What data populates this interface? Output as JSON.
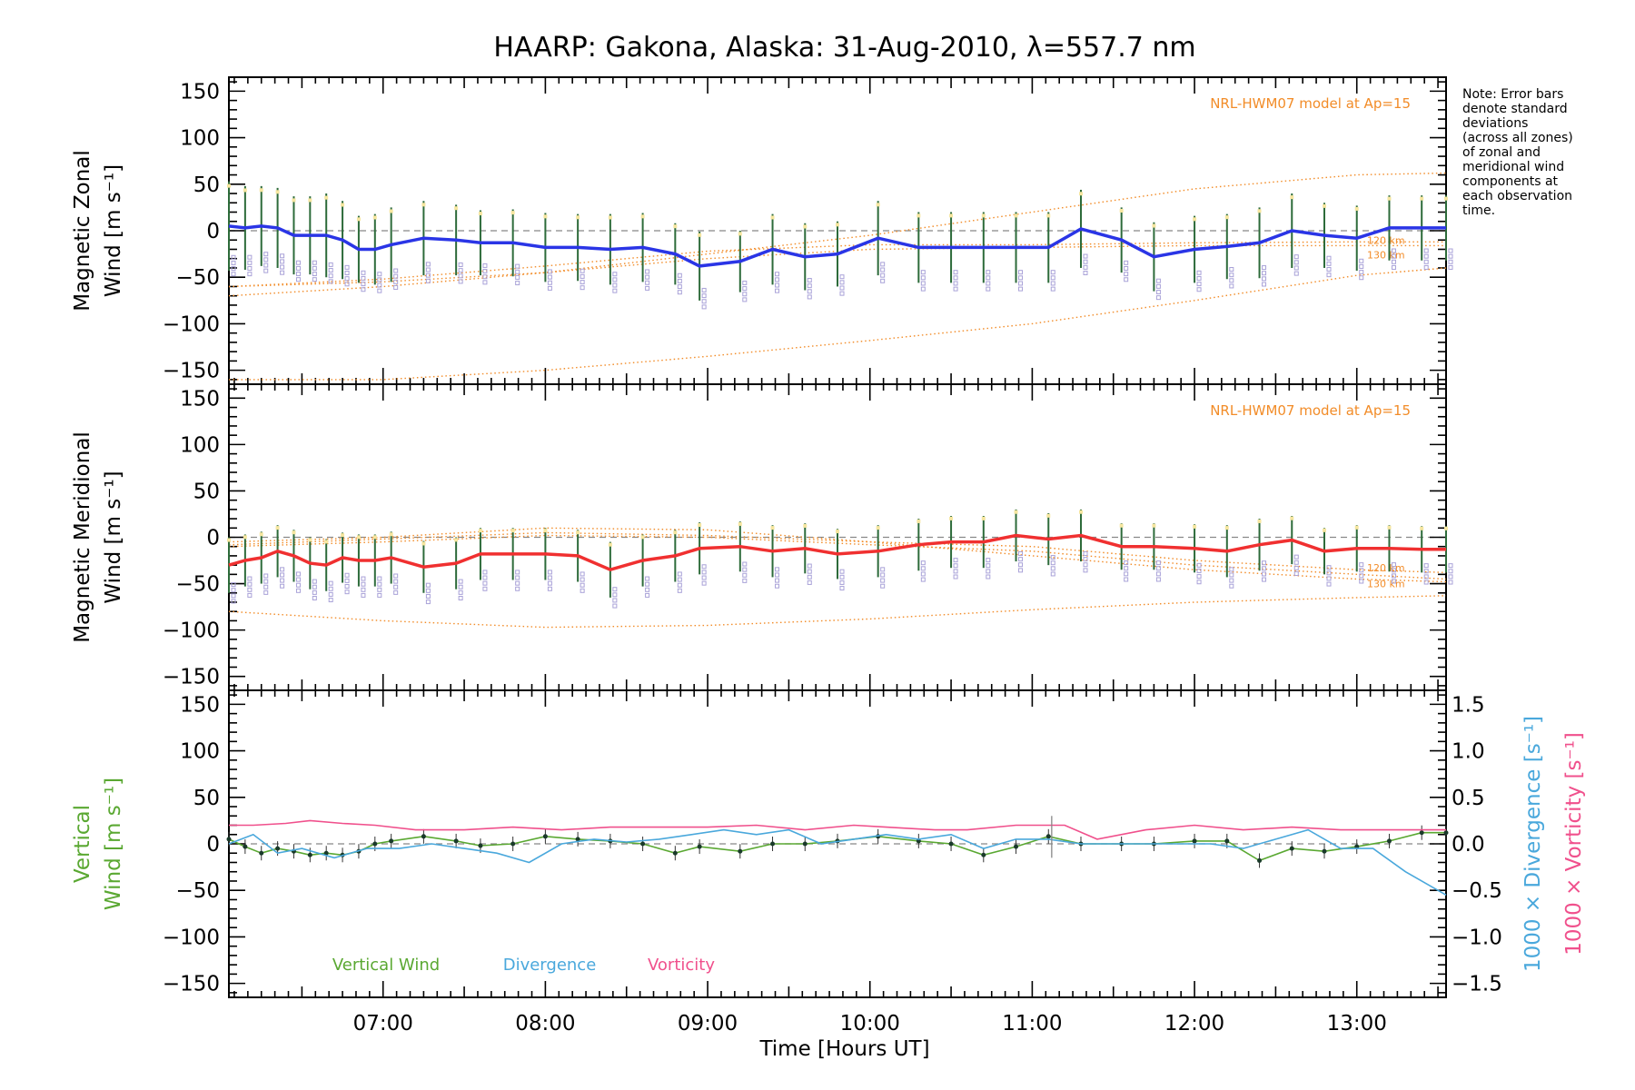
{
  "chart_data": {
    "title": "HAARP: Gakona,  Alaska: 31-Aug-2010, λ=557.7 nm",
    "xlabel": "Time [Hours UT]",
    "x_tick_labels": [
      "07:00",
      "08:00",
      "09:00",
      "10:00",
      "11:00",
      "12:00",
      "13:00"
    ],
    "x_tick_values": [
      7,
      8,
      9,
      10,
      11,
      12,
      13
    ],
    "xlim": [
      6.05,
      13.55
    ],
    "note": [
      "Note: Error bars",
      "denote standard",
      "deviations",
      "(across all zones)",
      "of zonal and",
      "meridional wind",
      "components at",
      "each observation",
      "time."
    ],
    "model_label": "NRL-HWM07 model at Ap=15",
    "km_labels": [
      "120 km",
      "130 km"
    ],
    "colors": {
      "zonal": "#2a35e6",
      "meridional": "#f03030",
      "model": "#f28c28",
      "vertical": "#5aa832",
      "divergence": "#4aa8dc",
      "vorticity": "#f0508c",
      "errorbar": "#2d6b3a",
      "zone_points": "#a9a2d8"
    },
    "panels": [
      {
        "type": "line",
        "name": "zonal",
        "ylabel": [
          "Magnetic Zonal",
          "Wind [m s⁻¹]"
        ],
        "ylim": [
          -165,
          165
        ],
        "y_tick_labels": [
          "150",
          "100",
          "50",
          "0",
          "−50",
          "−100",
          "−150"
        ],
        "y_tick_values": [
          150,
          100,
          50,
          0,
          -50,
          -100,
          -150
        ],
        "series": [
          {
            "x": [
              6.05,
              6.15,
              6.25,
              6.35,
              6.45,
              6.55,
              6.65,
              6.75,
              6.85,
              6.95,
              7.05,
              7.25,
              7.45,
              7.6,
              7.8,
              8.0,
              8.2,
              8.4,
              8.6,
              8.8,
              8.95,
              9.2,
              9.4,
              9.6,
              9.8,
              10.05,
              10.3,
              10.5,
              10.7,
              10.9,
              11.1,
              11.3,
              11.55,
              11.75,
              12.0,
              12.2,
              12.4,
              12.6,
              12.8,
              13.0,
              13.2,
              13.4,
              13.55
            ],
            "values": [
              5,
              3,
              5,
              3,
              -5,
              -5,
              -5,
              -10,
              -20,
              -20,
              -15,
              -8,
              -10,
              -13,
              -13,
              -18,
              -18,
              -20,
              -18,
              -25,
              -38,
              -33,
              -20,
              -28,
              -25,
              -8,
              -18,
              -18,
              -18,
              -18,
              -18,
              2,
              -10,
              -28,
              -20,
              -17,
              -13,
              0,
              -5,
              -8,
              3,
              3,
              3
            ],
            "errorbar_sd": [
              48,
              45,
              43,
              43,
              42,
              42,
              45,
              42,
              36,
              38,
              40,
              40,
              38,
              35,
              36,
              37,
              36,
              38,
              37,
              33,
              37,
              33,
              38,
              36,
              35,
              40,
              38,
              38,
              38,
              38,
              38,
              42,
              35,
              37,
              36,
              35,
              38,
              40,
              35,
              35,
              35,
              35,
              35
            ]
          }
        ],
        "model_curves": {
          "upper": {
            "x": [
              6.05,
              7,
              8,
              9,
              10,
              11,
              12,
              13,
              13.55
            ],
            "values": [
              -70,
              -60,
              -45,
              -25,
              -5,
              20,
              45,
              60,
              62
            ]
          },
          "lower_120": {
            "x": [
              6.05,
              7,
              8,
              9,
              10,
              11,
              12,
              13,
              13.55
            ],
            "values": [
              -160,
              -160,
              -150,
              -135,
              -118,
              -100,
              -75,
              -48,
              -40
            ]
          },
          "mid_120": {
            "x": [
              6.05,
              7,
              8,
              9,
              10,
              11,
              12,
              13,
              13.55
            ],
            "values": [
              -60,
              -52,
              -38,
              -22,
              -15,
              -15,
              -13,
              -12,
              -12
            ]
          },
          "mid_130": {
            "x": [
              6.05,
              7,
              8,
              9,
              10,
              11,
              12,
              13,
              13.55
            ],
            "values": [
              -60,
              -55,
              -45,
              -30,
              -20,
              -18,
              -16,
              -16,
              -16
            ]
          }
        }
      },
      {
        "type": "line",
        "name": "meridional",
        "ylabel": [
          "Magnetic Meridional",
          "Wind [m s⁻¹]"
        ],
        "ylim": [
          -165,
          165
        ],
        "y_tick_labels": [
          "150",
          "100",
          "50",
          "0",
          "−50",
          "−100",
          "−150"
        ],
        "y_tick_values": [
          150,
          100,
          50,
          0,
          -50,
          -100,
          -150
        ],
        "series": [
          {
            "x": [
              6.05,
              6.15,
              6.25,
              6.35,
              6.45,
              6.55,
              6.65,
              6.75,
              6.85,
              6.95,
              7.05,
              7.25,
              7.45,
              7.6,
              7.8,
              8.0,
              8.2,
              8.4,
              8.6,
              8.8,
              8.95,
              9.2,
              9.4,
              9.6,
              9.8,
              10.05,
              10.3,
              10.5,
              10.7,
              10.9,
              11.1,
              11.3,
              11.55,
              11.75,
              12.0,
              12.2,
              12.4,
              12.6,
              12.8,
              13.0,
              13.2,
              13.4,
              13.55
            ],
            "values": [
              -30,
              -25,
              -22,
              -15,
              -20,
              -28,
              -30,
              -22,
              -25,
              -25,
              -22,
              -32,
              -28,
              -18,
              -18,
              -18,
              -20,
              -35,
              -25,
              -20,
              -12,
              -10,
              -15,
              -12,
              -18,
              -15,
              -8,
              -5,
              -5,
              2,
              -2,
              2,
              -10,
              -10,
              -12,
              -15,
              -8,
              -3,
              -15,
              -12,
              -12,
              -13,
              -13
            ],
            "errorbar_sd": [
              30,
              28,
              28,
              28,
              28,
              28,
              28,
              27,
              28,
              28,
              28,
              28,
              28,
              28,
              28,
              28,
              28,
              30,
              28,
              28,
              28,
              27,
              28,
              27,
              27,
              28,
              28,
              28,
              28,
              28,
              28,
              28,
              25,
              25,
              26,
              28,
              28,
              26,
              25,
              25,
              25,
              25,
              25
            ]
          }
        ],
        "model_curves": {
          "upper": {
            "x": [
              6.05,
              7,
              8,
              9,
              10,
              11,
              12,
              13,
              13.55
            ],
            "values": [
              -5,
              0,
              10,
              8,
              -5,
              -20,
              -35,
              -45,
              -48
            ]
          },
          "lower": {
            "x": [
              6.05,
              7,
              8,
              9,
              10,
              11,
              12,
              13,
              13.55
            ],
            "values": [
              -80,
              -90,
              -97,
              -95,
              -88,
              -78,
              -70,
              -65,
              -63
            ]
          },
          "mid_120": {
            "x": [
              6.05,
              7,
              8,
              9,
              10,
              11,
              12,
              13,
              13.55
            ],
            "values": [
              -8,
              -2,
              5,
              2,
              -5,
              -10,
              -25,
              -35,
              -38
            ]
          },
          "mid_130": {
            "x": [
              6.05,
              7,
              8,
              9,
              10,
              11,
              12,
              13,
              13.55
            ],
            "values": [
              -10,
              -5,
              2,
              0,
              -8,
              -15,
              -30,
              -40,
              -45
            ]
          }
        }
      },
      {
        "type": "line",
        "name": "vertical",
        "ylabel_left": [
          "Vertical",
          "Wind [m s⁻¹]"
        ],
        "ylabel_right_1": "1000 × Divergence [s⁻¹]",
        "ylabel_right_2": "1000 × Vorticity [s⁻¹]",
        "ylim": [
          -165,
          165
        ],
        "y_tick_labels": [
          "150",
          "100",
          "50",
          "0",
          "−50",
          "−100",
          "−150"
        ],
        "y_tick_values": [
          150,
          100,
          50,
          0,
          -50,
          -100,
          -150
        ],
        "y2lim": [
          -1.65,
          1.65
        ],
        "y2_tick_labels": [
          "1.5",
          "1.0",
          "0.5",
          "0.0",
          "−0.5",
          "−1.0",
          "−1.5"
        ],
        "y2_tick_values": [
          1.5,
          1.0,
          0.5,
          0.0,
          -0.5,
          -1.0,
          -1.5
        ],
        "legend": [
          "Vertical Wind",
          "Divergence",
          "Vorticity"
        ],
        "series": [
          {
            "name": "Vertical Wind",
            "x": [
              6.05,
              6.15,
              6.25,
              6.35,
              6.45,
              6.55,
              6.65,
              6.75,
              6.85,
              6.95,
              7.05,
              7.25,
              7.45,
              7.6,
              7.8,
              8.0,
              8.2,
              8.4,
              8.6,
              8.8,
              8.95,
              9.2,
              9.4,
              9.6,
              9.8,
              10.05,
              10.3,
              10.5,
              10.7,
              10.9,
              11.1,
              11.3,
              11.55,
              11.75,
              12.0,
              12.2,
              12.4,
              12.6,
              12.8,
              13.0,
              13.2,
              13.4,
              13.55
            ],
            "values": [
              5,
              -3,
              -10,
              -5,
              -8,
              -12,
              -10,
              -12,
              -8,
              0,
              3,
              8,
              3,
              -2,
              0,
              8,
              5,
              3,
              0,
              -10,
              -3,
              -8,
              0,
              0,
              3,
              8,
              3,
              0,
              -12,
              -3,
              8,
              0,
              0,
              0,
              3,
              3,
              -18,
              -5,
              -8,
              -3,
              3,
              12,
              12
            ]
          },
          {
            "name": "Divergence",
            "x": [
              6.05,
              6.2,
              6.35,
              6.5,
              6.7,
              6.9,
              7.1,
              7.3,
              7.5,
              7.7,
              7.9,
              8.1,
              8.3,
              8.5,
              8.7,
              8.9,
              9.1,
              9.3,
              9.5,
              9.7,
              9.9,
              10.1,
              10.3,
              10.5,
              10.7,
              10.9,
              11.1,
              11.3,
              11.5,
              11.7,
              11.9,
              12.1,
              12.3,
              12.5,
              12.7,
              12.9,
              13.1,
              13.3,
              13.55
            ],
            "values": [
              0.0,
              0.1,
              -0.1,
              -0.05,
              -0.15,
              -0.05,
              -0.05,
              0.0,
              -0.05,
              -0.1,
              -0.2,
              0.0,
              0.05,
              0.02,
              0.05,
              0.1,
              0.15,
              0.1,
              0.15,
              0.0,
              0.05,
              0.1,
              0.05,
              0.1,
              -0.05,
              0.05,
              0.05,
              0.0,
              0.0,
              0.0,
              0.0,
              0.0,
              -0.05,
              0.05,
              0.15,
              -0.05,
              -0.05,
              -0.3,
              -0.55
            ]
          },
          {
            "name": "Vorticity",
            "x": [
              6.05,
              6.2,
              6.4,
              6.55,
              6.75,
              6.95,
              7.2,
              7.5,
              7.8,
              8.1,
              8.4,
              8.7,
              9.0,
              9.3,
              9.6,
              9.9,
              10.1,
              10.4,
              10.6,
              10.9,
              11.2,
              11.4,
              11.7,
              12.0,
              12.3,
              12.6,
              12.9,
              13.2,
              13.55
            ],
            "values": [
              0.2,
              0.2,
              0.22,
              0.25,
              0.22,
              0.2,
              0.15,
              0.15,
              0.18,
              0.15,
              0.18,
              0.18,
              0.18,
              0.2,
              0.15,
              0.2,
              0.18,
              0.15,
              0.15,
              0.2,
              0.2,
              0.05,
              0.15,
              0.2,
              0.15,
              0.18,
              0.15,
              0.15,
              0.15
            ]
          }
        ]
      }
    ]
  }
}
